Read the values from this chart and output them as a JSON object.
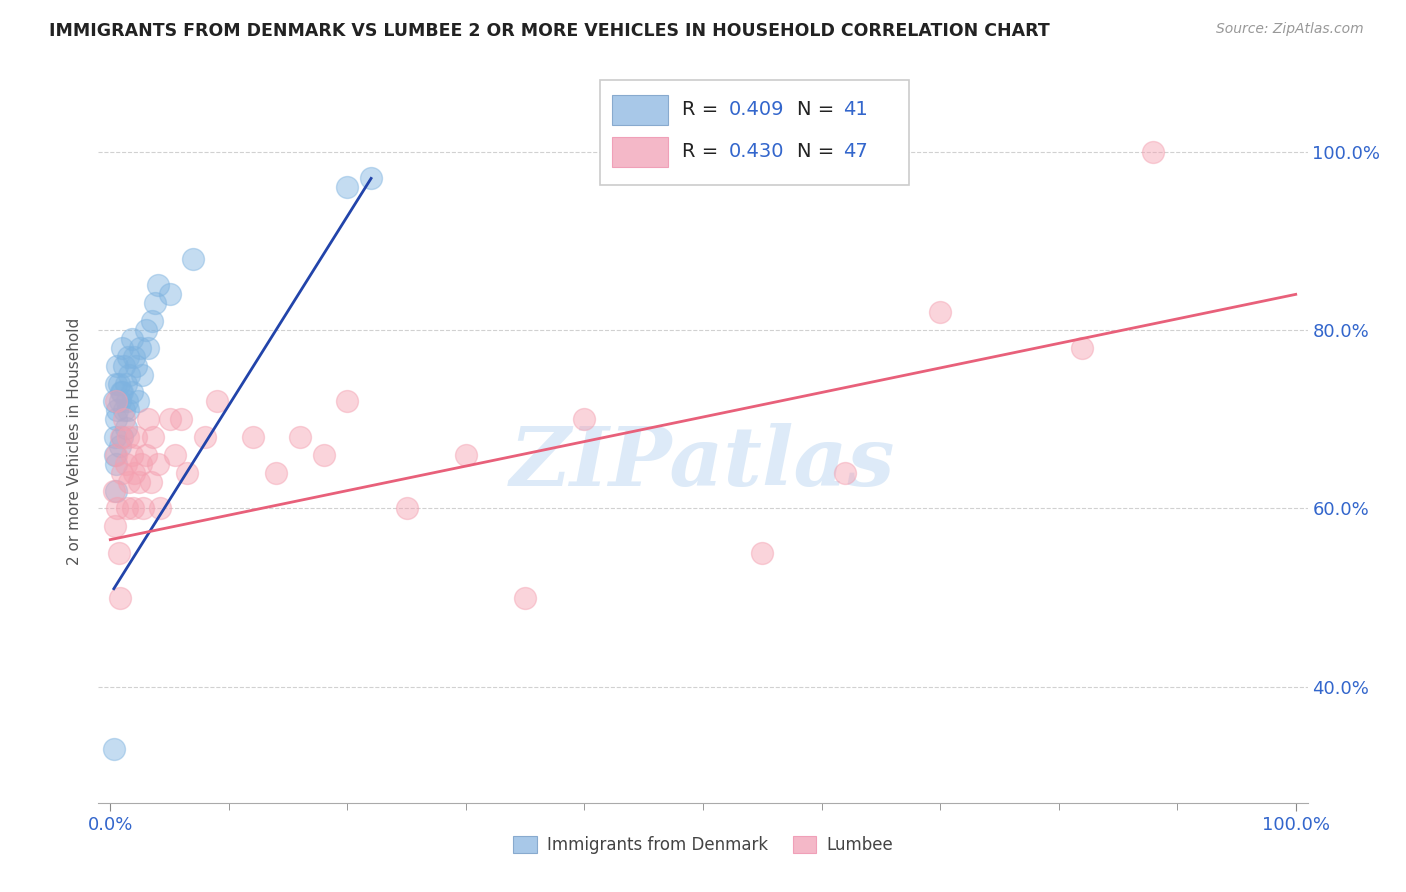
{
  "title": "IMMIGRANTS FROM DENMARK VS LUMBEE 2 OR MORE VEHICLES IN HOUSEHOLD CORRELATION CHART",
  "source": "Source: ZipAtlas.com",
  "ylabel": "2 or more Vehicles in Household",
  "xlim": [
    -0.01,
    1.01
  ],
  "ylim": [
    0.27,
    1.08
  ],
  "xtick_positions": [
    0.0,
    1.0
  ],
  "xticklabels": [
    "0.0%",
    "100.0%"
  ],
  "ytick_positions": [
    0.4,
    0.6,
    0.8,
    1.0
  ],
  "ytick_labels": [
    "40.0%",
    "60.0%",
    "80.0%",
    "100.0%"
  ],
  "blue_color": "#7EB3E0",
  "pink_color": "#F4A0B0",
  "blue_line_color": "#2244AA",
  "pink_line_color": "#E8607A",
  "legend_box_blue": "#A8C8E8",
  "legend_box_pink": "#F4B8C8",
  "R_blue": 0.409,
  "N_blue": 41,
  "R_pink": 0.43,
  "N_pink": 47,
  "blue_scatter_x": [
    0.003,
    0.004,
    0.004,
    0.005,
    0.005,
    0.005,
    0.005,
    0.006,
    0.006,
    0.007,
    0.008,
    0.008,
    0.009,
    0.01,
    0.01,
    0.01,
    0.012,
    0.012,
    0.013,
    0.013,
    0.014,
    0.015,
    0.015,
    0.016,
    0.018,
    0.018,
    0.02,
    0.022,
    0.023,
    0.025,
    0.027,
    0.03,
    0.032,
    0.035,
    0.038,
    0.04,
    0.05,
    0.07,
    0.2,
    0.22,
    0.003
  ],
  "blue_scatter_y": [
    0.72,
    0.68,
    0.66,
    0.74,
    0.7,
    0.65,
    0.62,
    0.76,
    0.71,
    0.74,
    0.72,
    0.67,
    0.73,
    0.78,
    0.73,
    0.68,
    0.76,
    0.71,
    0.74,
    0.69,
    0.72,
    0.77,
    0.71,
    0.75,
    0.79,
    0.73,
    0.77,
    0.76,
    0.72,
    0.78,
    0.75,
    0.8,
    0.78,
    0.81,
    0.83,
    0.85,
    0.84,
    0.88,
    0.96,
    0.97,
    0.33
  ],
  "pink_scatter_x": [
    0.003,
    0.004,
    0.005,
    0.005,
    0.006,
    0.007,
    0.008,
    0.009,
    0.01,
    0.012,
    0.013,
    0.014,
    0.015,
    0.016,
    0.018,
    0.019,
    0.02,
    0.022,
    0.024,
    0.026,
    0.028,
    0.03,
    0.032,
    0.034,
    0.036,
    0.04,
    0.042,
    0.05,
    0.055,
    0.06,
    0.065,
    0.08,
    0.09,
    0.12,
    0.14,
    0.16,
    0.18,
    0.2,
    0.25,
    0.3,
    0.35,
    0.4,
    0.55,
    0.62,
    0.7,
    0.82,
    0.88
  ],
  "pink_scatter_y": [
    0.62,
    0.58,
    0.72,
    0.66,
    0.6,
    0.55,
    0.5,
    0.68,
    0.64,
    0.7,
    0.65,
    0.6,
    0.68,
    0.63,
    0.66,
    0.6,
    0.64,
    0.68,
    0.63,
    0.65,
    0.6,
    0.66,
    0.7,
    0.63,
    0.68,
    0.65,
    0.6,
    0.7,
    0.66,
    0.7,
    0.64,
    0.68,
    0.72,
    0.68,
    0.64,
    0.68,
    0.66,
    0.72,
    0.6,
    0.66,
    0.5,
    0.7,
    0.55,
    0.64,
    0.82,
    0.78,
    1.0
  ],
  "blue_line_x": [
    0.003,
    0.22
  ],
  "blue_line_y": [
    0.51,
    0.97
  ],
  "pink_line_x": [
    0.0,
    1.0
  ],
  "pink_line_y": [
    0.565,
    0.84
  ],
  "watermark": "ZIPatlas",
  "watermark_color": "#AACCEE",
  "grid_color": "#CCCCCC",
  "legend1_label": "Immigrants from Denmark",
  "legend2_label": "Lumbee"
}
